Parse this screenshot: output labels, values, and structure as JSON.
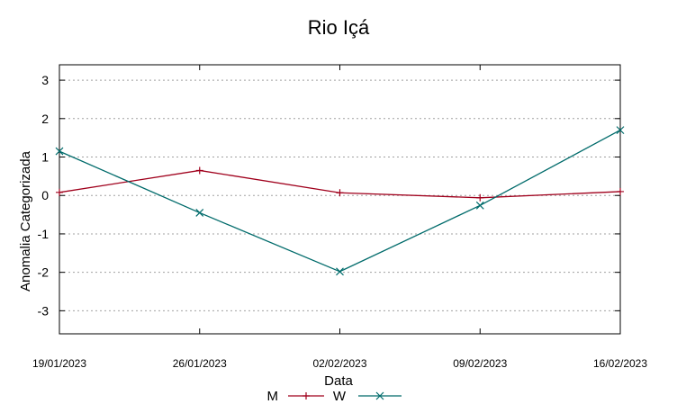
{
  "chart_data": {
    "type": "line",
    "title": "Rio Içá",
    "xlabel": "Data",
    "ylabel": "Anomalia Categorizada",
    "categories": [
      "19/01/2023",
      "26/01/2023",
      "02/02/2023",
      "09/02/2023",
      "16/02/2023"
    ],
    "ylim": [
      -3.6,
      3.4
    ],
    "yticks": [
      -3,
      -2,
      -1,
      0,
      1,
      2,
      3
    ],
    "ytick_labels": [
      "-3",
      "-2",
      "-1",
      "0",
      "1",
      "2",
      "3"
    ],
    "grid": true,
    "legend_position": "bottom",
    "series": [
      {
        "name": "M",
        "color": "#a0001c",
        "marker": "plus",
        "values": [
          0.08,
          0.65,
          0.07,
          -0.06,
          0.1
        ]
      },
      {
        "name": "W",
        "color": "#006b6b",
        "marker": "x",
        "values": [
          1.15,
          -0.45,
          -1.98,
          -0.26,
          1.7
        ]
      }
    ]
  }
}
